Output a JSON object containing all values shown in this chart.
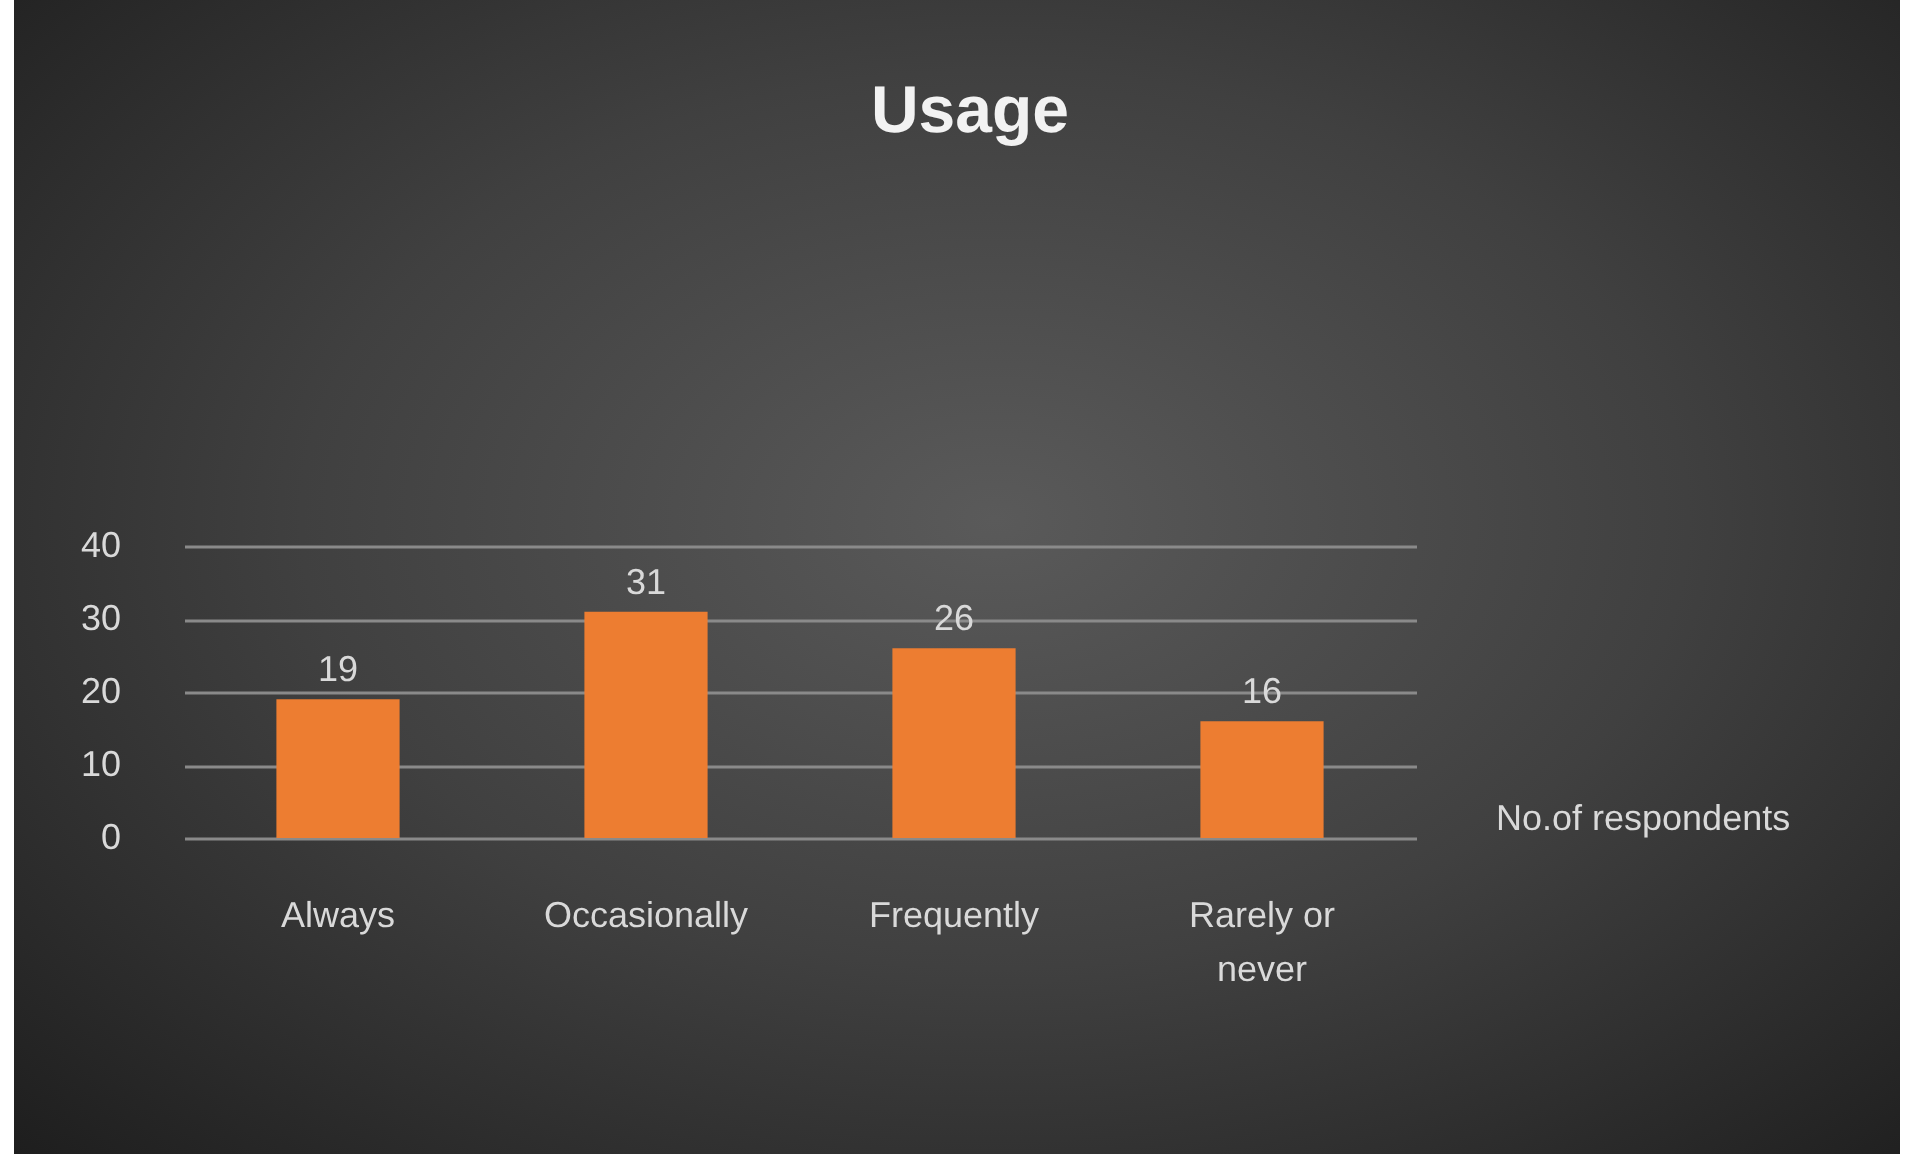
{
  "chart_data": {
    "type": "bar",
    "title": "Usage",
    "categories": [
      "Always",
      "Occasionally",
      "Frequently",
      "Rarely or never"
    ],
    "series": [
      {
        "name": "No.of respondents",
        "color": "#ed7d31",
        "values": [
          19,
          31,
          26,
          16
        ]
      }
    ],
    "ylim": [
      0,
      40
    ],
    "yticks": [
      0,
      10,
      20,
      30,
      40
    ],
    "grid": "y",
    "data_labels": true
  }
}
